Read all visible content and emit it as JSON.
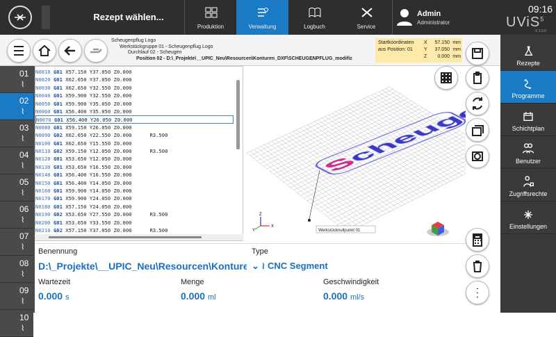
{
  "header": {
    "recipe": "Rezept wählen...",
    "tabs": [
      "Produktion",
      "Verwaltung",
      "Logbuch",
      "Service"
    ],
    "user": {
      "name": "Admin",
      "role": "Administrator"
    },
    "time": "09:16",
    "logo": "UViS",
    "logo_sup": "5",
    "version": "V 1.0.0"
  },
  "sidebar": [
    "Rezepte",
    "Programme",
    "Schichtplan",
    "Benutzer",
    "Zugriffsrechte",
    "Einstellungen"
  ],
  "info": {
    "lines": [
      "Scheugenpflug Logo",
      "Werkstückgruppe 01 - Scheugenpflug Logo",
      "Durchlauf 02 - Scheugen",
      "Position 02 - D:\\_Projekte\\__UPIC_Neu\\Resourcen\\Konturen_DXF\\SCHEUGENPFLUG_modifiz"
    ],
    "start": {
      "title": "Startkoordinaten",
      "source": "aus Position: 01",
      "coords": [
        {
          "axis": "X",
          "value": "57.150",
          "unit": "mm"
        },
        {
          "axis": "Y",
          "value": "37.050",
          "unit": "mm"
        },
        {
          "axis": "Z",
          "value": "0.000",
          "unit": "mm"
        }
      ]
    }
  },
  "positions": [
    "01",
    "02",
    "03",
    "04",
    "05",
    "06",
    "07",
    "08",
    "09",
    "10"
  ],
  "program": [
    {
      "n": "N0010",
      "g": "G01",
      "c": "X57.150 Y37.050 Z0.000"
    },
    {
      "n": "N0020",
      "g": "G01",
      "c": "X62.650 Y37.050 Z0.000"
    },
    {
      "n": "N0030",
      "g": "G01",
      "c": "X62.650 Y32.550 Z0.000"
    },
    {
      "n": "N0040",
      "g": "G01",
      "c": "X59.900 Y32.550 Z0.000"
    },
    {
      "n": "N0050",
      "g": "G01",
      "c": "X59.900 Y35.050 Z0.000"
    },
    {
      "n": "N0060",
      "g": "G01",
      "c": "X56.400 Y35.050 Z0.000"
    },
    {
      "n": "N0070",
      "g": "G01",
      "c": "X56.400 Y26.050 Z0.000"
    },
    {
      "n": "N0080",
      "g": "G01",
      "c": "X59.150 Y26.050 Z0.000"
    },
    {
      "n": "N0090",
      "g": "G02",
      "c": "X62.650 Y22.550 Z0.000",
      "r": "R3.500"
    },
    {
      "n": "N0100",
      "g": "G01",
      "c": "X62.650 Y15.550 Z0.000"
    },
    {
      "n": "N0110",
      "g": "G02",
      "c": "X59.150 Y12.050 Z0.000",
      "r": "R3.500"
    },
    {
      "n": "N0120",
      "g": "G01",
      "c": "X53.650 Y12.050 Z0.000"
    },
    {
      "n": "N0130",
      "g": "G01",
      "c": "X53.650 Y16.550 Z0.000"
    },
    {
      "n": "N0140",
      "g": "G01",
      "c": "X56.400 Y16.550 Z0.000"
    },
    {
      "n": "N0150",
      "g": "G01",
      "c": "X56.400 Y14.050 Z0.000"
    },
    {
      "n": "N0160",
      "g": "G01",
      "c": "X59.900 Y14.050 Z0.000"
    },
    {
      "n": "N0170",
      "g": "G01",
      "c": "X59.900 Y24.050 Z0.000"
    },
    {
      "n": "N0180",
      "g": "G01",
      "c": "X57.150 Y24.050 Z0.000"
    },
    {
      "n": "N0190",
      "g": "G02",
      "c": "X53.650 Y27.550 Z0.000",
      "r": "R3.500"
    },
    {
      "n": "N0200",
      "g": "G01",
      "c": "X53.650 Y33.550 Z0.000"
    },
    {
      "n": "N0210",
      "g": "G02",
      "c": "X57.150 Y37.050 Z0.000",
      "r": "R3.500"
    }
  ],
  "view": {
    "origin_label": "Werkstücknullpunkt 01",
    "axes": [
      "X",
      "Y",
      "Z"
    ],
    "logo_text": "Scheugenpflug"
  },
  "form": {
    "name_label": "Benennung",
    "name_value": "D:\\_Projekte\\__UPIC_Neu\\Resourcen\\Konturen_",
    "type_label": "Type",
    "type_value": "CNC Segment",
    "fields": [
      {
        "label": "Wartezeit",
        "value": "0.000",
        "unit": "s"
      },
      {
        "label": "Menge",
        "value": "0.000",
        "unit": "ml"
      },
      {
        "label": "Geschwindigkeit",
        "value": "0.000",
        "unit": "ml/s"
      }
    ]
  }
}
